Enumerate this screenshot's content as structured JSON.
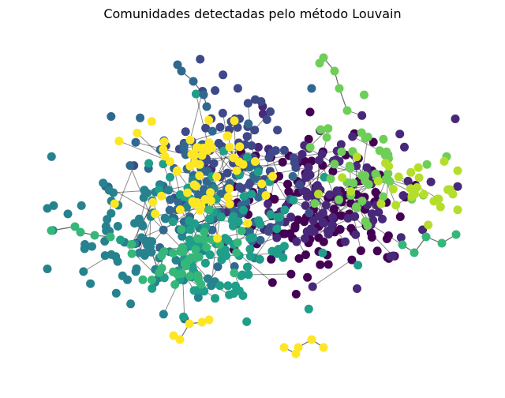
{
  "figure": {
    "title": "Comunidades detectadas pelo método Louvain"
  },
  "graph": {
    "type": "network",
    "layout": "spring",
    "node_count_estimate": 1000,
    "edge_color": "#000000",
    "community_colors": [
      "#440154",
      "#482878",
      "#3e4989",
      "#31688e",
      "#26828e",
      "#1f9e89",
      "#35b779",
      "#6ece58",
      "#b5de2b",
      "#fde725"
    ]
  }
}
